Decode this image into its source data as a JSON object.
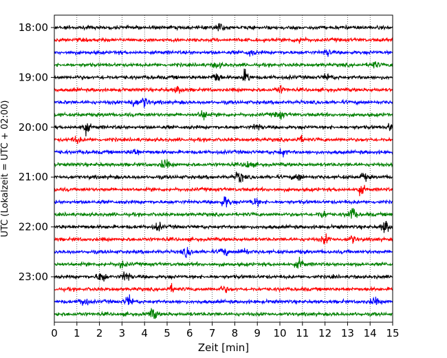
{
  "chart_data": {
    "type": "line",
    "title": "",
    "xlabel": "Zeit  [min]",
    "ylabel": "UTC (Lokalzeit = UTC + 02:00)",
    "xlim": [
      0,
      15
    ],
    "x_ticks": [
      "0",
      "1",
      "2",
      "3",
      "4",
      "5",
      "6",
      "7",
      "8",
      "9",
      "10",
      "11",
      "12",
      "13",
      "14",
      "15"
    ],
    "y_tick_labels": [
      "18:00",
      "19:00",
      "20:00",
      "21:00",
      "22:00",
      "23:00"
    ],
    "y_tick_rows": [
      0,
      4,
      8,
      12,
      16,
      20
    ],
    "row_interval_minutes": 15,
    "start_time_utc": "18:00",
    "grid": "vertical dotted",
    "colors_cycle": [
      "#000000",
      "#ff0000",
      "#0000ff",
      "#008000"
    ],
    "series": [
      {
        "start": "18:00",
        "color": "#000000",
        "bursts": [
          [
            7.3,
            1.2
          ]
        ]
      },
      {
        "start": "18:15",
        "color": "#ff0000",
        "bursts": [
          [
            10.9,
            0.9
          ]
        ]
      },
      {
        "start": "18:30",
        "color": "#0000ff",
        "bursts": [
          [
            8.7,
            0.9
          ],
          [
            12.1,
            0.8
          ]
        ]
      },
      {
        "start": "18:45",
        "color": "#008000",
        "bursts": [
          [
            7.2,
            0.8
          ],
          [
            14.2,
            0.8
          ]
        ]
      },
      {
        "start": "19:00",
        "color": "#000000",
        "bursts": [
          [
            7.2,
            1.4
          ],
          [
            8.5,
            1.7
          ],
          [
            12.1,
            0.8
          ]
        ]
      },
      {
        "start": "19:15",
        "color": "#ff0000",
        "bursts": [
          [
            5.5,
            1.0
          ],
          [
            10.0,
            1.0
          ]
        ]
      },
      {
        "start": "19:30",
        "color": "#0000ff",
        "bursts": [
          [
            3.5,
            1.0
          ],
          [
            4.0,
            1.3
          ]
        ]
      },
      {
        "start": "19:45",
        "color": "#008000",
        "bursts": [
          [
            6.6,
            1.3
          ],
          [
            10.0,
            1.0
          ]
        ]
      },
      {
        "start": "20:00",
        "color": "#000000",
        "bursts": [
          [
            1.4,
            1.5
          ],
          [
            9.0,
            0.8
          ],
          [
            14.9,
            1.0
          ]
        ]
      },
      {
        "start": "20:15",
        "color": "#ff0000",
        "bursts": [
          [
            1.0,
            0.9
          ],
          [
            10.9,
            0.7
          ]
        ]
      },
      {
        "start": "20:30",
        "color": "#0000ff",
        "bursts": [
          [
            3.6,
            1.0
          ],
          [
            10.1,
            0.9
          ]
        ]
      },
      {
        "start": "20:45",
        "color": "#008000",
        "bursts": [
          [
            4.9,
            1.3
          ],
          [
            8.6,
            1.0
          ]
        ]
      },
      {
        "start": "21:00",
        "color": "#000000",
        "bursts": [
          [
            8.2,
            1.5
          ],
          [
            10.8,
            1.0
          ],
          [
            13.7,
            1.0
          ]
        ]
      },
      {
        "start": "21:15",
        "color": "#ff0000",
        "bursts": [
          [
            13.6,
            1.0
          ]
        ]
      },
      {
        "start": "21:30",
        "color": "#0000ff",
        "bursts": [
          [
            7.6,
            1.6
          ],
          [
            8.9,
            1.0
          ]
        ]
      },
      {
        "start": "21:45",
        "color": "#008000",
        "bursts": [
          [
            11.9,
            0.9
          ],
          [
            13.2,
            1.7
          ]
        ]
      },
      {
        "start": "22:00",
        "color": "#000000",
        "bursts": [
          [
            4.6,
            1.0
          ],
          [
            14.7,
            1.7
          ]
        ]
      },
      {
        "start": "22:15",
        "color": "#ff0000",
        "bursts": [
          [
            12.0,
            1.1
          ],
          [
            13.2,
            0.9
          ]
        ]
      },
      {
        "start": "22:30",
        "color": "#0000ff",
        "bursts": [
          [
            5.9,
            1.3
          ],
          [
            7.5,
            1.0
          ],
          [
            8.4,
            1.0
          ]
        ]
      },
      {
        "start": "22:45",
        "color": "#008000",
        "bursts": [
          [
            3.0,
            0.9
          ],
          [
            10.9,
            1.2
          ]
        ]
      },
      {
        "start": "23:00",
        "color": "#000000",
        "bursts": [
          [
            2.1,
            1.6
          ],
          [
            3.2,
            1.4
          ]
        ]
      },
      {
        "start": "23:15",
        "color": "#ff0000",
        "bursts": [
          [
            5.2,
            0.9
          ],
          [
            7.5,
            0.8
          ]
        ]
      },
      {
        "start": "23:30",
        "color": "#0000ff",
        "bursts": [
          [
            1.3,
            1.3
          ],
          [
            3.3,
            1.4
          ],
          [
            14.2,
            1.0
          ]
        ]
      },
      {
        "start": "23:45",
        "color": "#008000",
        "bursts": [
          [
            4.4,
            1.4
          ]
        ]
      }
    ]
  }
}
